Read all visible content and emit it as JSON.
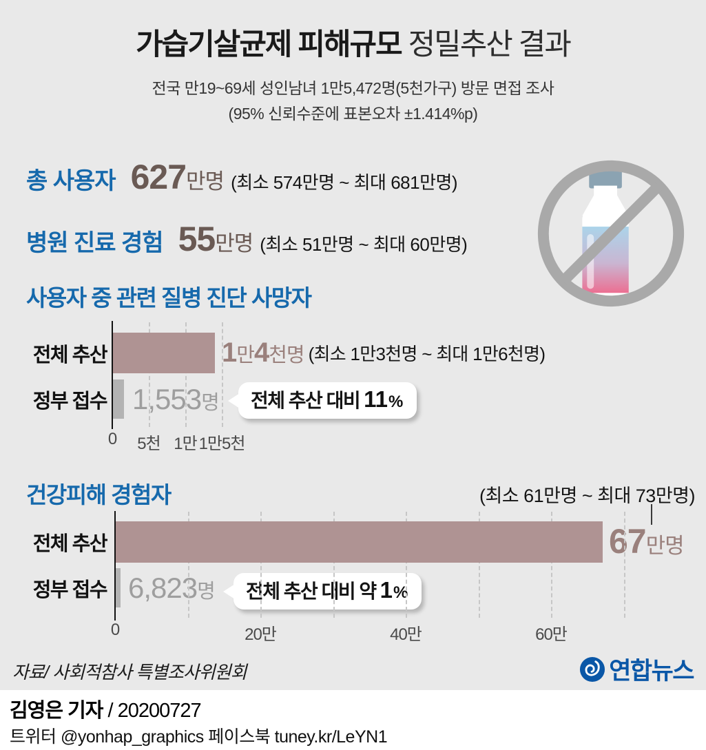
{
  "title": {
    "bold": "가습기살균제 피해규모",
    "regular": " 정밀추산 결과"
  },
  "subtitle": {
    "line1": "전국 만19~69세 성인남녀 1만5,472명(5천가구) 방문 면접 조사",
    "line2": "(95% 신뢰수준에 표본오차 ±1.414%p)"
  },
  "stats": [
    {
      "label": "총 사용자",
      "value": "627",
      "unit": "만명",
      "range": "(최소 574만명 ~ 최대 681만명)"
    },
    {
      "label": "병원 진료 경험",
      "value": "55",
      "unit": "만명",
      "range": "(최소 51만명 ~ 최대 60만명)"
    }
  ],
  "chart_data": [
    {
      "type": "bar",
      "title": "사용자 중 관련 질병 진단 사망자",
      "categories": [
        "전체 추산",
        "정부 접수"
      ],
      "values": [
        14000,
        1553
      ],
      "value_label_parts": [
        [
          {
            "t": "1",
            "big": true
          },
          {
            "t": "만"
          },
          {
            "t": "4",
            "big": true
          },
          {
            "t": "천명"
          }
        ],
        [
          {
            "t": "1,553",
            "big": true
          },
          {
            "t": "명"
          }
        ]
      ],
      "range_note": "(최소 1만3천명 ~ 최대 1만6천명)",
      "callout": {
        "prefix": "전체 추산 대비",
        "value": "11",
        "suffix": "%"
      },
      "ticks": [
        {
          "v": 0,
          "label": "0"
        },
        {
          "v": 5000,
          "label": "5천"
        },
        {
          "v": 10000,
          "label": "1만"
        },
        {
          "v": 15000,
          "label": "1만5천"
        }
      ],
      "xlim": [
        0,
        16000
      ],
      "grid": "dashed-vertical",
      "legend": "none"
    },
    {
      "type": "bar",
      "title": "건강피해 경험자",
      "categories": [
        "전체 추산",
        "정부 접수"
      ],
      "values": [
        670000,
        6823
      ],
      "value_label_parts": [
        [
          {
            "t": "67",
            "big": true
          },
          {
            "t": "만명"
          }
        ],
        [
          {
            "t": "6,823",
            "big": true
          },
          {
            "t": "명"
          }
        ]
      ],
      "range_note": "(최소 61만명 ~ 최대 73만명)",
      "callout": {
        "prefix": "전체 추산 대비 약",
        "value": "1",
        "suffix": "%"
      },
      "ticks": [
        {
          "v": 0,
          "label": "0"
        },
        {
          "v": 100000
        },
        {
          "v": 200000,
          "label": "20만"
        },
        {
          "v": 300000
        },
        {
          "v": 400000,
          "label": "40만"
        },
        {
          "v": 500000
        },
        {
          "v": 600000,
          "label": "60만"
        },
        {
          "v": 700000
        }
      ],
      "xlim": [
        0,
        700000
      ],
      "grid": "dashed-vertical",
      "legend": "none"
    }
  ],
  "footer": {
    "source": "자료/ 사회적참사 특별조사위원회",
    "logo_text": "연합뉴스",
    "byline_bold": "김영은 기자",
    "byline_rest": " / 20200727",
    "sns": "트위터 @yonhap_graphics  페이스북 tuney.kr/LeYN1"
  },
  "colors": {
    "background": "#e9e9e9",
    "heading_blue": "#1669ac",
    "bar_mauve": "#af9393",
    "bar_gray": "#b3b3b3",
    "value_mauve": "#9a807c",
    "value_gray": "#9e9e9e",
    "number_brown": "#6a5a54",
    "logo_blue": "#0a57a7",
    "bottle_cap": "#8ba3b2",
    "liquid_top": "#abd4ea",
    "liquid_bottom": "#ec6f92",
    "no_sign_gray": "#a9a9a9"
  }
}
